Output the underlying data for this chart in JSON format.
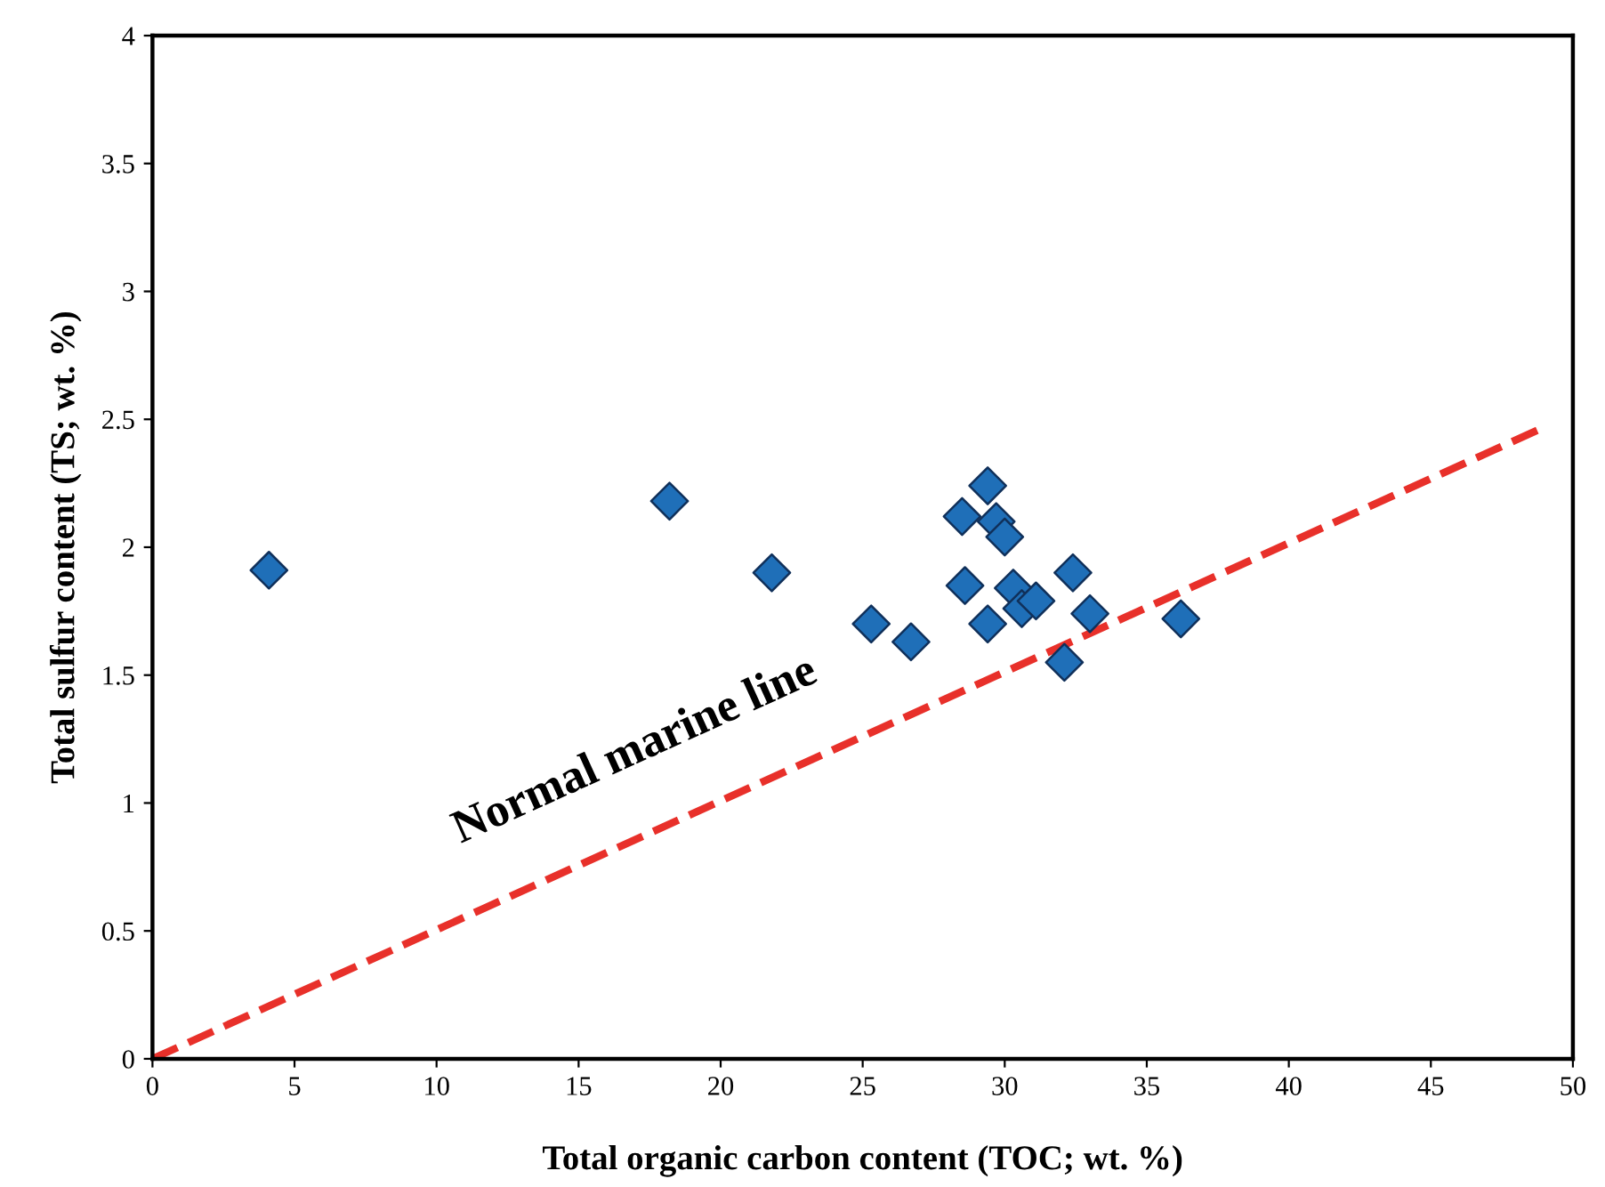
{
  "chart_data": {
    "type": "scatter",
    "xlabel": "Total organic carbon content (TOC; wt. %)",
    "ylabel": "Total sulfur content (TS; wt. %)",
    "xlim": [
      0,
      50
    ],
    "ylim": [
      0,
      4
    ],
    "xticks": [
      0,
      5,
      10,
      15,
      20,
      25,
      30,
      35,
      40,
      45,
      50
    ],
    "yticks": [
      0,
      0.5,
      1,
      1.5,
      2,
      2.5,
      3,
      3.5,
      4
    ],
    "grid": false,
    "legend": false,
    "series": [
      {
        "color": "#1f6fb8",
        "marker": "diamond",
        "x": [
          4.1,
          18.2,
          21.8,
          25.3,
          26.7,
          28.5,
          28.6,
          29.4,
          29.7,
          30.0,
          29.4,
          30.3,
          30.6,
          31.1,
          32.4,
          33.0,
          32.1,
          36.2
        ],
        "values": [
          1.91,
          2.18,
          1.9,
          1.7,
          1.63,
          2.12,
          1.85,
          2.24,
          2.1,
          2.04,
          1.7,
          1.84,
          1.76,
          1.79,
          1.9,
          1.74,
          1.55,
          1.72
        ]
      },
      {
        "type": "line",
        "color": "#e8302a",
        "line_style": "dashed",
        "marker": "none",
        "x": [
          0,
          49
        ],
        "values": [
          0,
          2.47
        ]
      }
    ],
    "annotations": [
      "Normal marine line"
    ]
  }
}
